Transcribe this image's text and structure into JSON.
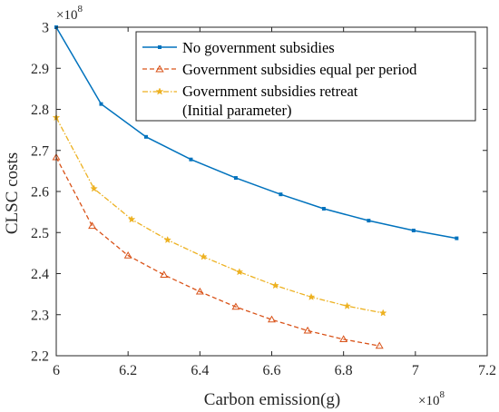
{
  "chart_data": {
    "type": "line",
    "xlabel": "Carbon emission(g)",
    "ylabel": "CLSC costs",
    "x_multiplier": "×10",
    "x_multiplier_exp": "8",
    "y_multiplier": "×10",
    "y_multiplier_exp": "8",
    "xlim": [
      6,
      7.2
    ],
    "ylim": [
      2.2,
      3
    ],
    "xticks": [
      "6",
      "6.2",
      "6.4",
      "6.6",
      "6.8",
      "7",
      "7.2"
    ],
    "yticks": [
      "2.2",
      "2.3",
      "2.4",
      "2.5",
      "2.6",
      "2.7",
      "2.8",
      "2.9",
      "3"
    ],
    "grid": false,
    "legend_position": "top-right",
    "series": [
      {
        "name": "No government subsidies",
        "color": "#0072BD",
        "marker": "square",
        "style": "solid",
        "x": [
          6.0,
          6.125,
          6.25,
          6.375,
          6.5,
          6.625,
          6.745,
          6.87,
          6.995,
          7.115
        ],
        "y": [
          3.0,
          2.813,
          2.733,
          2.678,
          2.633,
          2.593,
          2.558,
          2.529,
          2.505,
          2.486
        ]
      },
      {
        "name": "Government subsidies equal per period",
        "color": "#D95319",
        "marker": "triangle",
        "style": "dashed",
        "x": [
          6.0,
          6.1,
          6.2,
          6.3,
          6.4,
          6.5,
          6.6,
          6.7,
          6.8,
          6.9
        ],
        "y": [
          2.683,
          2.516,
          2.444,
          2.397,
          2.356,
          2.319,
          2.288,
          2.261,
          2.24,
          2.224
        ]
      },
      {
        "name": "Government subsidies retreat",
        "name_line2": "(Initial parameter)",
        "color": "#EDB120",
        "marker": "star",
        "style": "dashdot",
        "x": [
          6.0,
          6.105,
          6.21,
          6.31,
          6.41,
          6.51,
          6.61,
          6.71,
          6.81,
          6.91
        ],
        "y": [
          2.78,
          2.607,
          2.532,
          2.482,
          2.441,
          2.404,
          2.371,
          2.343,
          2.321,
          2.304
        ]
      }
    ]
  }
}
